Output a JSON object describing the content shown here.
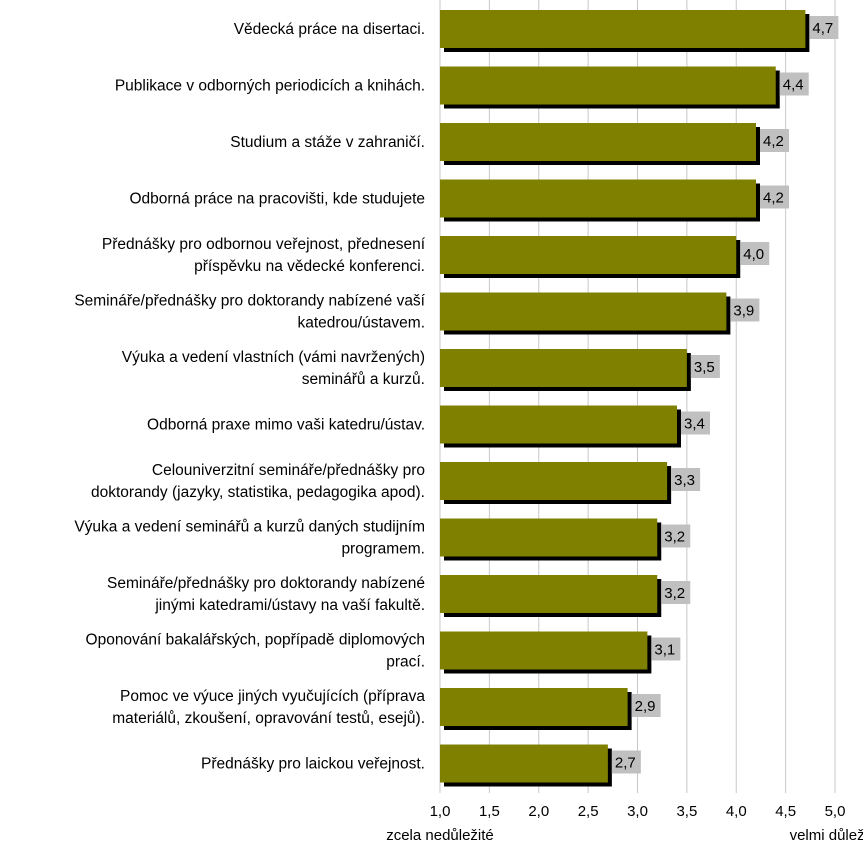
{
  "chart_data": {
    "type": "bar",
    "orientation": "horizontal",
    "categories": [
      [
        "Vědecká práce na disertaci."
      ],
      [
        "Publikace v odborných periodicích a knihách."
      ],
      [
        "Studium a stáže v zahraničí."
      ],
      [
        "Odborná práce na pracovišti, kde studujete"
      ],
      [
        "Přednášky pro odbornou veřejnost, přednesení",
        "příspěvku na vědecké konferenci."
      ],
      [
        "Semináře/přednášky pro doktorandy nabízené vaší",
        "katedrou/ústavem."
      ],
      [
        "Výuka a vedení vlastních (vámi navržených)",
        "seminářů a kurzů."
      ],
      [
        "Odborná praxe mimo vaši katedru/ústav."
      ],
      [
        "Celouniverzitní semináře/přednášky pro",
        "doktorandy (jazyky, statistika, pedagogika apod)."
      ],
      [
        "Výuka a vedení seminářů a kurzů daných studijním",
        "programem."
      ],
      [
        "Semináře/přednášky pro doktorandy nabízené",
        "jinými katedrami/ústavy na vaší fakultě."
      ],
      [
        "Oponování bakalářských, popřípadě diplomových",
        "prací."
      ],
      [
        "Pomoc ve výuce jiných vyučujících (příprava",
        "materiálů, zkoušení, opravování testů, esejů)."
      ],
      [
        "Přednášky pro laickou veřejnost."
      ]
    ],
    "values": [
      4.7,
      4.4,
      4.2,
      4.2,
      4.0,
      3.9,
      3.5,
      3.4,
      3.3,
      3.2,
      3.2,
      3.1,
      2.9,
      2.7
    ],
    "data_labels": [
      "4,7",
      "4,4",
      "4,2",
      "4,2",
      "4,0",
      "3,9",
      "3,5",
      "3,4",
      "3,3",
      "3,2",
      "3,2",
      "3,1",
      "2,9",
      "2,7"
    ],
    "xlim": [
      1.0,
      5.0
    ],
    "x_ticks": [
      1.0,
      1.5,
      2.0,
      2.5,
      3.0,
      3.5,
      4.0,
      4.5,
      5.0
    ],
    "x_tick_labels": [
      "1,0",
      "1,5",
      "2,0",
      "2,5",
      "3,0",
      "3,5",
      "4,0",
      "4,5",
      "5,0"
    ],
    "x_axis_left_label": "zcela nedůležité",
    "x_axis_right_label": "velmi důležité",
    "grid": true,
    "colors": {
      "bar": "#808000",
      "bar_shadow": "#000000",
      "data_label_background": "#c0c0c0",
      "gridline": "#c8c8c8"
    }
  }
}
